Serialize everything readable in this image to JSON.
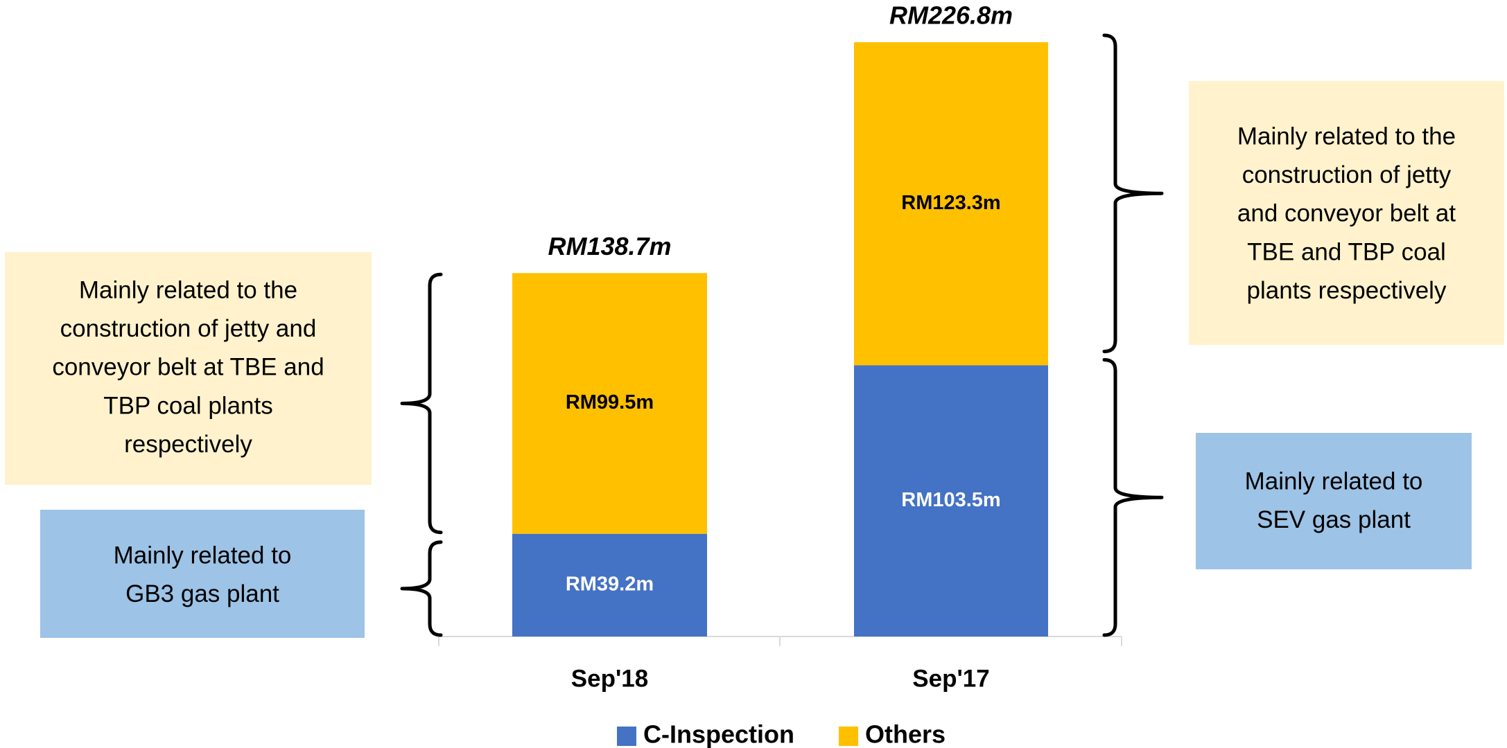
{
  "chart_data": {
    "type": "stacked_bar",
    "categories": [
      "Sep'18",
      "Sep'17"
    ],
    "series": [
      {
        "name": "C-Inspection",
        "color": "#4472c4",
        "values": [
          39.2,
          103.5
        ],
        "value_labels": [
          "RM39.2m",
          "RM103.5m"
        ]
      },
      {
        "name": "Others",
        "color": "#ffc000",
        "values": [
          99.5,
          123.3
        ],
        "value_labels": [
          "RM99.5m",
          "RM123.3m"
        ]
      }
    ],
    "totals": [
      138.7,
      226.8
    ],
    "total_labels": [
      "RM138.7m",
      "RM226.8m"
    ],
    "annotations": [
      {
        "lines": [
          "Mainly related to the",
          "construction of jetty and",
          "conveyor belt at TBE and",
          "TBP coal plants",
          "respectively"
        ],
        "color": "#fff2cc"
      },
      {
        "lines": [
          "Mainly related to",
          "GB3 gas plant"
        ],
        "color": "#9dc3e6"
      },
      {
        "lines": [
          "Mainly related to the",
          "construction of jetty",
          "and conveyor belt at",
          "TBE and TBP coal",
          "plants respectively"
        ],
        "color": "#fff2cc"
      },
      {
        "lines": [
          "Mainly related to",
          "SEV gas plant"
        ],
        "color": "#9dc3e6"
      }
    ],
    "legend": "bottom"
  }
}
